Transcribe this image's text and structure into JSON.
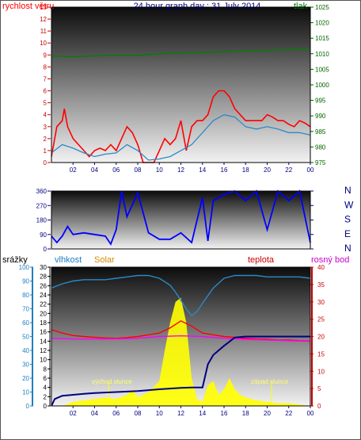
{
  "chart_data": [
    {
      "type": "line",
      "title": "24 hour graph day : 31 July 2014",
      "left_label": "rychlost větru",
      "right_label": "tlak",
      "left_ticks": [
        "13",
        "12",
        "11",
        "10",
        "9",
        "8",
        "7",
        "6",
        "5",
        "4",
        "3",
        "2",
        "1",
        "0"
      ],
      "right_ticks": [
        "1025",
        "1020",
        "1015",
        "1010",
        "1005",
        "1000",
        "995",
        "990",
        "985",
        "980",
        "975"
      ],
      "x_ticks": [
        "02",
        "04",
        "06",
        "08",
        "10",
        "12",
        "14",
        "16",
        "18",
        "20",
        "22",
        "00"
      ],
      "ylim_left": [
        0,
        13
      ],
      "ylim_right": [
        975,
        1025
      ],
      "xlim": [
        0,
        24
      ],
      "series": [
        {
          "name": "rychlost větru",
          "color": "#ff0000",
          "x": [
            0,
            0.5,
            1,
            1.2,
            1.5,
            2,
            2.5,
            3,
            3.5,
            4,
            4.5,
            5,
            5.5,
            6,
            6.5,
            7,
            7.5,
            8,
            8.5,
            9,
            9.5,
            10,
            10.5,
            11,
            11.5,
            12,
            12.5,
            13,
            13.5,
            14,
            14.5,
            15,
            15.5,
            16,
            16.5,
            17,
            17.5,
            18,
            18.5,
            19,
            19.5,
            20,
            20.5,
            21,
            21.5,
            22,
            22.5,
            23,
            23.5,
            24
          ],
          "values": [
            0.5,
            3.0,
            3.5,
            4.5,
            3.0,
            2.0,
            1.5,
            1.0,
            0.5,
            1.0,
            1.2,
            1.0,
            1.5,
            1.0,
            2.0,
            3.0,
            2.5,
            1.5,
            0,
            0,
            0,
            1.0,
            2.0,
            1.5,
            2.0,
            3.5,
            1.0,
            3.0,
            3.5,
            3.5,
            4.0,
            5.5,
            6.0,
            6.0,
            5.5,
            4.5,
            4.0,
            3.5,
            3.5,
            3.5,
            3.5,
            4.0,
            3.8,
            3.5,
            3.5,
            3.2,
            3.0,
            3.5,
            3.3,
            3.0
          ]
        },
        {
          "name": "",
          "color": "#2a8ac8",
          "x": [
            0,
            1,
            2,
            3,
            4,
            5,
            6,
            7,
            8,
            9,
            10,
            11,
            12,
            13,
            14,
            15,
            16,
            17,
            18,
            19,
            20,
            21,
            22,
            23,
            24
          ],
          "values": [
            0.8,
            1.5,
            1.2,
            0.8,
            0.5,
            0.7,
            0.8,
            1.5,
            1.0,
            0.2,
            0.3,
            0.5,
            1.0,
            1.5,
            2.5,
            3.5,
            4.0,
            3.8,
            3.0,
            2.8,
            3.0,
            2.8,
            2.5,
            2.5,
            2.3
          ]
        },
        {
          "name": "tlak",
          "color": "#008000",
          "axis": "right",
          "x": [
            0,
            2,
            4,
            6,
            8,
            10,
            12,
            14,
            16,
            18,
            20,
            22,
            24
          ],
          "values": [
            1009.3,
            1009.0,
            1009.3,
            1009.5,
            1009.5,
            1010.0,
            1010.3,
            1010.4,
            1010.6,
            1010.9,
            1011.1,
            1011.3,
            1011.6
          ]
        }
      ]
    },
    {
      "type": "line",
      "title": "",
      "left_ticks": [
        "360",
        "270",
        "180",
        "90",
        "0"
      ],
      "right_ticks": [
        "N",
        "W",
        "S",
        "E",
        "N"
      ],
      "x_ticks": [],
      "ylim_left": [
        0,
        360
      ],
      "xlim": [
        0,
        24
      ],
      "series": [
        {
          "name": "",
          "color": "#0000ff",
          "x": [
            0,
            0.5,
            1,
            1.5,
            2,
            3,
            4,
            5,
            5.5,
            6,
            6.5,
            7,
            8,
            9,
            10,
            11,
            12,
            13,
            14,
            14.5,
            15,
            16,
            17,
            18,
            19,
            20,
            21,
            22,
            23,
            24
          ],
          "values": [
            80,
            40,
            80,
            140,
            90,
            100,
            90,
            80,
            30,
            120,
            360,
            200,
            350,
            100,
            60,
            60,
            100,
            40,
            320,
            50,
            300,
            340,
            360,
            300,
            360,
            120,
            360,
            300,
            360,
            40
          ]
        }
      ]
    },
    {
      "type": "line",
      "title": "",
      "left_label_1": "srážky",
      "left_label_2": "vlhkost",
      "left_label_3": "Solar",
      "right_label_1": "teplota",
      "right_label_2": "rosný bod",
      "annotation_sunrise": "východ slunce",
      "annotation_sunset": "západ slunce",
      "left_ticks": [
        "100",
        "90",
        "80",
        "70",
        "60",
        "50",
        "40",
        "30",
        "20",
        "10",
        "0"
      ],
      "srazky_ticks": [
        "30",
        "28",
        "26",
        "24",
        "22",
        "20",
        "18",
        "16",
        "14",
        "12",
        "10",
        "8",
        "6",
        "4",
        "2",
        "0"
      ],
      "right_ticks": [
        "40",
        "35",
        "30",
        "25",
        "20",
        "15",
        "10",
        "5",
        "0"
      ],
      "x_ticks": [
        "02",
        "04",
        "06",
        "08",
        "10",
        "12",
        "14",
        "16",
        "18",
        "20",
        "22",
        "00"
      ],
      "ylim_left": [
        0,
        100
      ],
      "ylim_right": [
        0,
        40
      ],
      "xlim": [
        0,
        24
      ],
      "series": [
        {
          "name": "vlhkost",
          "color": "#2a8ac8",
          "x": [
            0,
            1,
            2,
            3,
            4,
            5,
            6,
            7,
            8,
            9,
            10,
            11,
            11.5,
            12,
            12.5,
            13,
            13.5,
            14,
            15,
            16,
            17,
            18,
            19,
            20,
            21,
            22,
            23,
            24
          ],
          "values": [
            85,
            88,
            90,
            91,
            91,
            91,
            92,
            93,
            94,
            94,
            92,
            87,
            82,
            76,
            70,
            65,
            68,
            74,
            85,
            92,
            94,
            94,
            94,
            93,
            93,
            93,
            93,
            92
          ]
        },
        {
          "name": "teplota",
          "color": "#ff0000",
          "x": [
            0,
            1,
            2,
            3,
            4,
            5,
            6,
            7,
            8,
            9,
            10,
            11,
            12,
            13,
            14,
            15,
            16,
            17,
            18,
            19,
            20,
            21,
            22,
            23,
            24
          ],
          "values": [
            22,
            21,
            20.3,
            20,
            19.8,
            19.6,
            19.5,
            19.7,
            20,
            20.5,
            21,
            22.5,
            24.5,
            23,
            21,
            20.5,
            20,
            19.8,
            19.5,
            19.3,
            19.2,
            19,
            19,
            18.8,
            18.7
          ]
        },
        {
          "name": "rosný bod",
          "color": "#ff00ff",
          "x": [
            0,
            2,
            4,
            6,
            8,
            10,
            12,
            14,
            16,
            18,
            20,
            22,
            24
          ],
          "values": [
            19.5,
            19.3,
            19.3,
            19.3,
            19.5,
            20,
            20.2,
            20,
            19.5,
            19.2,
            19,
            18.8,
            18.6
          ]
        },
        {
          "name": "srážky",
          "color": "#000080",
          "x": [
            0,
            0.3,
            1,
            2,
            3,
            4,
            6,
            8,
            10,
            12,
            13,
            14,
            14.5,
            15,
            16,
            17,
            18,
            20,
            22,
            24
          ],
          "values": [
            0,
            1.5,
            2.2,
            2.4,
            2.6,
            2.8,
            3.0,
            3.2,
            3.6,
            3.9,
            4.0,
            4.0,
            9.0,
            11.0,
            13.0,
            14.8,
            15.0,
            15.0,
            15.0,
            15.0
          ]
        },
        {
          "name": "Solar",
          "color": "#ffff00",
          "x": [
            0,
            1,
            2,
            3,
            4,
            5,
            6,
            7,
            7.5,
            8,
            9,
            10,
            10.5,
            11,
            11.5,
            12,
            12.5,
            13,
            13.5,
            14,
            14.5,
            15,
            15.5,
            16,
            16.5,
            17,
            17.5,
            18,
            19,
            20,
            21,
            22,
            23,
            24
          ],
          "values": [
            0,
            0,
            3,
            4,
            5,
            6,
            5,
            8,
            12,
            6,
            10,
            18,
            40,
            60,
            75,
            78,
            60,
            20,
            5,
            3,
            15,
            18,
            8,
            12,
            20,
            12,
            8,
            6,
            4,
            3,
            2,
            2,
            1,
            0
          ]
        }
      ]
    }
  ]
}
